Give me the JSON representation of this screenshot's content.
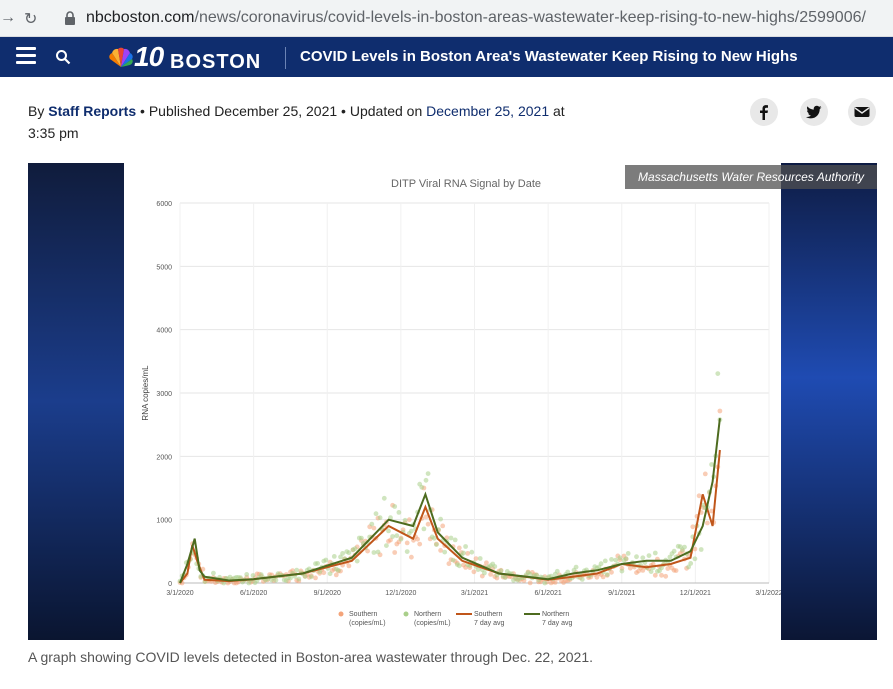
{
  "browser": {
    "url_host": "nbcboston.com",
    "url_path": "/news/coronavirus/covid-levels-in-boston-areas-wastewater-keep-rising-to-new-highs/2599006/"
  },
  "site": {
    "logo_number": "10",
    "logo_city": "BOSTON",
    "headline": "COVID Levels in Boston Area's Wastewater Keep Rising to New Highs"
  },
  "byline": {
    "by": "By ",
    "author": "Staff Reports",
    "sep1": " • Published December 25, 2021 • Updated on ",
    "updated": "December 25, 2021",
    "tail": " at 3:35 pm"
  },
  "image": {
    "credit": "Massachusetts Water Resources Authority",
    "caption": "A graph showing COVID levels detected in Boston-area wastewater through Dec. 22, 2021."
  },
  "colors": {
    "nav_bg": "#0f2d6e",
    "southern": "#f4a47a",
    "northern": "#a9cf8a",
    "southern_avg": "#c0561a",
    "northern_avg": "#4d6b1f"
  },
  "chart_data": {
    "type": "line",
    "title": "DITP Viral RNA Signal by Date",
    "ylabel": "RNA copies/mL",
    "xlabel": "",
    "ylim": [
      0,
      6000
    ],
    "yticks": [
      "0",
      "1000",
      "2000",
      "3000",
      "4000",
      "5000",
      "6000"
    ],
    "xticks": [
      "3/1/2020",
      "6/1/2020",
      "9/1/2020",
      "12/1/2020",
      "3/1/2021",
      "6/1/2021",
      "9/1/2021",
      "12/1/2021",
      "3/1/2022"
    ],
    "legend": [
      {
        "name": "Southern (copies/mL)",
        "line1": "Southern",
        "line2": "(copies/mL)"
      },
      {
        "name": "Northern (copies/mL)",
        "line1": "Northern",
        "line2": "(copies/mL)"
      },
      {
        "name": "Southern 7 day avg",
        "line1": "Southern",
        "line2": "7 day avg"
      },
      {
        "name": "Northern 7 day avg",
        "line1": "Northern",
        "line2": "7 day avg"
      }
    ],
    "series": [
      {
        "name": "Southern 7 day avg",
        "points": [
          [
            0,
            0
          ],
          [
            0.3,
            150
          ],
          [
            0.5,
            600
          ],
          [
            0.7,
            350
          ],
          [
            1,
            50
          ],
          [
            2,
            30
          ],
          [
            3,
            60
          ],
          [
            5,
            150
          ],
          [
            7,
            350
          ],
          [
            8.5,
            900
          ],
          [
            9.5,
            700
          ],
          [
            10,
            1200
          ],
          [
            10.5,
            700
          ],
          [
            11.5,
            350
          ],
          [
            13,
            150
          ],
          [
            15,
            50
          ],
          [
            16,
            100
          ],
          [
            17,
            150
          ],
          [
            18,
            300
          ],
          [
            19,
            250
          ],
          [
            20,
            300
          ],
          [
            20.8,
            400
          ],
          [
            21.3,
            1400
          ],
          [
            21.7,
            900
          ],
          [
            22,
            2100
          ]
        ]
      },
      {
        "name": "Northern 7 day avg",
        "points": [
          [
            0,
            0
          ],
          [
            0.3,
            300
          ],
          [
            0.6,
            700
          ],
          [
            0.8,
            200
          ],
          [
            1,
            100
          ],
          [
            2,
            40
          ],
          [
            3,
            60
          ],
          [
            5,
            150
          ],
          [
            7,
            400
          ],
          [
            8.5,
            1000
          ],
          [
            9.5,
            900
          ],
          [
            10,
            1400
          ],
          [
            10.5,
            800
          ],
          [
            11.5,
            400
          ],
          [
            13,
            150
          ],
          [
            15,
            60
          ],
          [
            16,
            150
          ],
          [
            17,
            200
          ],
          [
            18,
            300
          ],
          [
            19,
            350
          ],
          [
            20,
            350
          ],
          [
            20.8,
            500
          ],
          [
            21.3,
            900
          ],
          [
            21.7,
            1600
          ],
          [
            22,
            2600
          ]
        ]
      }
    ],
    "x_units": "months since 3/1/2020"
  }
}
